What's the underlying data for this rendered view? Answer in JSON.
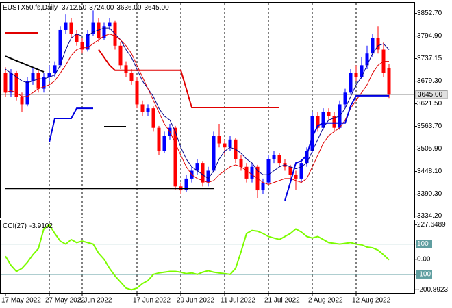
{
  "chart_data": [
    {
      "type": "candlestick",
      "title": "EUSTX50.fs,Daily",
      "header_values": [
        "3712.50",
        "3724.00",
        "3636.00",
        "3645.00"
      ],
      "categories": [
        "17 May 2022",
        null,
        null,
        null,
        null,
        null,
        null,
        null,
        "27 May 2022",
        null,
        null,
        null,
        null,
        null,
        "8 Jun 2022",
        null,
        null,
        null,
        null,
        null,
        null,
        null,
        null,
        null,
        "17 Jun 2022",
        null,
        null,
        null,
        null,
        null,
        null,
        null,
        "29 Jun 2022",
        null,
        null,
        null,
        null,
        null,
        null,
        null,
        "11 Jul 2022",
        null,
        null,
        null,
        null,
        null,
        null,
        null,
        "21 Jul 2022",
        null,
        null,
        null,
        null,
        null,
        null,
        null,
        "2 Aug 2022",
        null,
        null,
        null,
        null,
        null,
        null,
        null,
        "12 Aug 2022",
        null,
        null,
        null,
        null,
        null,
        null
      ],
      "open": [
        3700,
        3650,
        3700,
        3640,
        3620,
        3680,
        3700,
        3660,
        3690,
        3700,
        3720,
        3810,
        3830,
        3800,
        3780,
        3760,
        3800,
        3830,
        3790,
        3820,
        3830,
        3770,
        3720,
        3700,
        3680,
        3620,
        3600,
        3610,
        3560,
        3500,
        3540,
        3560,
        3410,
        3400,
        3430,
        3450,
        3470,
        3420,
        3450,
        3540,
        3520,
        3510,
        3530,
        3480,
        3460,
        3430,
        3460,
        3400,
        3420,
        3480,
        3490,
        3470,
        3460,
        3440,
        3430,
        3470,
        3500,
        3590,
        3560,
        3600,
        3590,
        3560,
        3620,
        3650,
        3700,
        3690,
        3720,
        3750,
        3790,
        3760,
        3712.5
      ],
      "high": [
        3715,
        3710,
        3705,
        3650,
        3690,
        3715,
        3710,
        3700,
        3720,
        3730,
        3820,
        3850,
        3840,
        3810,
        3790,
        3810,
        3860,
        3840,
        3830,
        3840,
        3835,
        3780,
        3730,
        3710,
        3690,
        3630,
        3620,
        3615,
        3565,
        3550,
        3570,
        3565,
        3420,
        3440,
        3460,
        3480,
        3475,
        3460,
        3550,
        3570,
        3530,
        3540,
        3535,
        3490,
        3470,
        3470,
        3465,
        3430,
        3490,
        3500,
        3495,
        3480,
        3465,
        3450,
        3480,
        3510,
        3600,
        3600,
        3610,
        3610,
        3600,
        3630,
        3660,
        3710,
        3720,
        3740,
        3770,
        3800,
        3820,
        3780,
        3724
      ],
      "low": [
        3640,
        3640,
        3630,
        3600,
        3615,
        3670,
        3650,
        3650,
        3680,
        3690,
        3715,
        3800,
        3790,
        3770,
        3750,
        3755,
        3795,
        3780,
        3785,
        3810,
        3760,
        3710,
        3690,
        3670,
        3610,
        3590,
        3590,
        3550,
        3490,
        3495,
        3530,
        3400,
        3390,
        3395,
        3420,
        3440,
        3410,
        3410,
        3445,
        3510,
        3490,
        3500,
        3470,
        3450,
        3420,
        3420,
        3380,
        3390,
        3415,
        3470,
        3460,
        3450,
        3430,
        3400,
        3420,
        3460,
        3495,
        3550,
        3555,
        3580,
        3550,
        3555,
        3610,
        3645,
        3680,
        3685,
        3710,
        3740,
        3750,
        3690,
        3636
      ],
      "close": [
        3650,
        3700,
        3640,
        3620,
        3680,
        3700,
        3660,
        3690,
        3700,
        3720,
        3810,
        3830,
        3800,
        3780,
        3760,
        3800,
        3830,
        3790,
        3820,
        3830,
        3770,
        3720,
        3700,
        3680,
        3620,
        3600,
        3610,
        3560,
        3500,
        3540,
        3560,
        3410,
        3400,
        3430,
        3450,
        3470,
        3420,
        3450,
        3540,
        3520,
        3510,
        3530,
        3480,
        3460,
        3430,
        3460,
        3400,
        3420,
        3480,
        3490,
        3470,
        3460,
        3440,
        3430,
        3470,
        3500,
        3590,
        3560,
        3600,
        3590,
        3560,
        3620,
        3650,
        3700,
        3690,
        3720,
        3750,
        3790,
        3760,
        3700,
        3645
      ],
      "up_color": "#0000ff",
      "down_color": "#ff0000",
      "series": [
        {
          "color": "#00008b",
          "width": 1,
          "values": [
            3710,
            3700,
            3690,
            3680,
            3675,
            3680,
            3685,
            3685,
            3690,
            3695,
            3720,
            3760,
            3790,
            3800,
            3795,
            3795,
            3805,
            3810,
            3815,
            3815,
            3800,
            3785,
            3760,
            3740,
            3710,
            3680,
            3660,
            3640,
            3610,
            3590,
            3580,
            3550,
            3510,
            3480,
            3460,
            3450,
            3440,
            3430,
            3450,
            3480,
            3500,
            3510,
            3505,
            3495,
            3480,
            3470,
            3450,
            3440,
            3440,
            3450,
            3460,
            3465,
            3460,
            3455,
            3460,
            3470,
            3500,
            3530,
            3560,
            3580,
            3585,
            3590,
            3610,
            3640,
            3670,
            3690,
            3720,
            3750,
            3770,
            3775,
            3760
          ]
        },
        {
          "color": "#e00000",
          "width": 1,
          "values": [
            3650,
            3655,
            3650,
            3640,
            3640,
            3650,
            3660,
            3665,
            3670,
            3680,
            3700,
            3720,
            3745,
            3760,
            3765,
            3765,
            3775,
            3785,
            3795,
            3800,
            3795,
            3785,
            3770,
            3750,
            3720,
            3690,
            3660,
            3630,
            3600,
            3570,
            3550,
            3520,
            3490,
            3460,
            3440,
            3430,
            3425,
            3420,
            3425,
            3440,
            3450,
            3460,
            3465,
            3460,
            3450,
            3440,
            3430,
            3420,
            3415,
            3420,
            3425,
            3430,
            3430,
            3425,
            3420,
            3430,
            3460,
            3490,
            3520,
            3540,
            3550,
            3560,
            3580,
            3610,
            3630,
            3650,
            3670,
            3700,
            3720,
            3730,
            3730
          ]
        },
        {
          "color": "#e00000",
          "width": 2,
          "values": [
            3803,
            3803,
            3803,
            3803,
            3803,
            3803,
            3803,
            null,
            null,
            null,
            null,
            null,
            null,
            null,
            null,
            null,
            null,
            3760,
            3740,
            3720,
            3707,
            3707,
            3707,
            3707,
            3707,
            3707,
            3707,
            3707,
            3707,
            3707,
            3707,
            3707,
            3707,
            3660,
            3612,
            3612,
            3612,
            3612,
            3612,
            3612,
            3612,
            3612,
            3612,
            3612,
            3612,
            3612,
            3612,
            3612,
            3612,
            3612,
            3612,
            null,
            null,
            null,
            null,
            null,
            null,
            null,
            null,
            null,
            null,
            null,
            null,
            null,
            null,
            null,
            null,
            null,
            null,
            null,
            null
          ]
        },
        {
          "color": "#0000e0",
          "width": 2,
          "values": [
            null,
            null,
            null,
            null,
            null,
            null,
            null,
            null,
            3523,
            3584,
            3584,
            3584,
            3584,
            3610,
            3610,
            3610,
            3610,
            null,
            null,
            null,
            null,
            null,
            null,
            null,
            null,
            null,
            null,
            null,
            null,
            null,
            null,
            null,
            null,
            null,
            null,
            null,
            null,
            null,
            null,
            null,
            null,
            null,
            null,
            null,
            null,
            null,
            null,
            null,
            null,
            null,
            null,
            3374,
            3420,
            3470,
            3475,
            3490,
            3537,
            3565,
            3572,
            3572,
            3572,
            3572,
            3572,
            3616,
            3642,
            3642,
            3642,
            3642,
            3642,
            3642,
            3642
          ]
        }
      ],
      "lines": [
        {
          "color": "#000000",
          "x": [
            0,
            38
          ],
          "values": [
            3405,
            3405
          ]
        },
        {
          "color": "#000000",
          "x": [
            0,
            7
          ],
          "values": [
            3743,
            3703
          ]
        },
        {
          "color": "#000000",
          "x": [
            18,
            22
          ],
          "values": [
            3563,
            3563
          ]
        }
      ],
      "last_label": "3645.00",
      "ylim": [
        3330,
        3880
      ],
      "yticks": [
        {
          "value": 3852.7,
          "label": "3852.70"
        },
        {
          "value": 3794.9,
          "label": "3794.90"
        },
        {
          "value": 3737.15,
          "label": "3737.15"
        },
        {
          "value": 3679.3,
          "label": "3679.30"
        },
        {
          "value": 3621.5,
          "label": "3621.50"
        },
        {
          "value": 3563.7,
          "label": "3563.70"
        },
        {
          "value": 3505.9,
          "label": "3505.90"
        },
        {
          "value": 3448.1,
          "label": "3448.10"
        },
        {
          "value": 3390.3,
          "label": "3390.30"
        },
        {
          "value": 3334.2,
          "label": "3334.20"
        }
      ],
      "grid": true
    },
    {
      "type": "line",
      "title": "CCI(27)",
      "last_label": "-3.9102",
      "color": "#7cfc00",
      "values": [
        20,
        -40,
        -80,
        -60,
        -20,
        30,
        70,
        200,
        227.6489,
        170,
        120,
        100,
        130,
        110,
        120,
        110,
        100,
        40,
        0,
        -60,
        -110,
        -150,
        -190,
        -200.8923,
        -190,
        -160,
        -140,
        -100,
        -90,
        -85,
        -80,
        -80,
        -85,
        -95,
        -90,
        -100,
        -85,
        -75,
        -85,
        -90,
        -95,
        -100,
        -60,
        50,
        170,
        190,
        185,
        170,
        150,
        140,
        130,
        150,
        170,
        200,
        180,
        150,
        140,
        150,
        130,
        110,
        105,
        100,
        105,
        110,
        100,
        95,
        80,
        75,
        60,
        30,
        -3.9102
      ],
      "levels": [
        100,
        -100
      ],
      "level_color": "#5f9ea0",
      "ylim": [
        -222,
        256
      ],
      "yticks": [
        227.6489,
        100,
        {
          "value": 0,
          "label": "0.00"
        },
        -100,
        -200.8923
      ],
      "grid": true
    }
  ]
}
